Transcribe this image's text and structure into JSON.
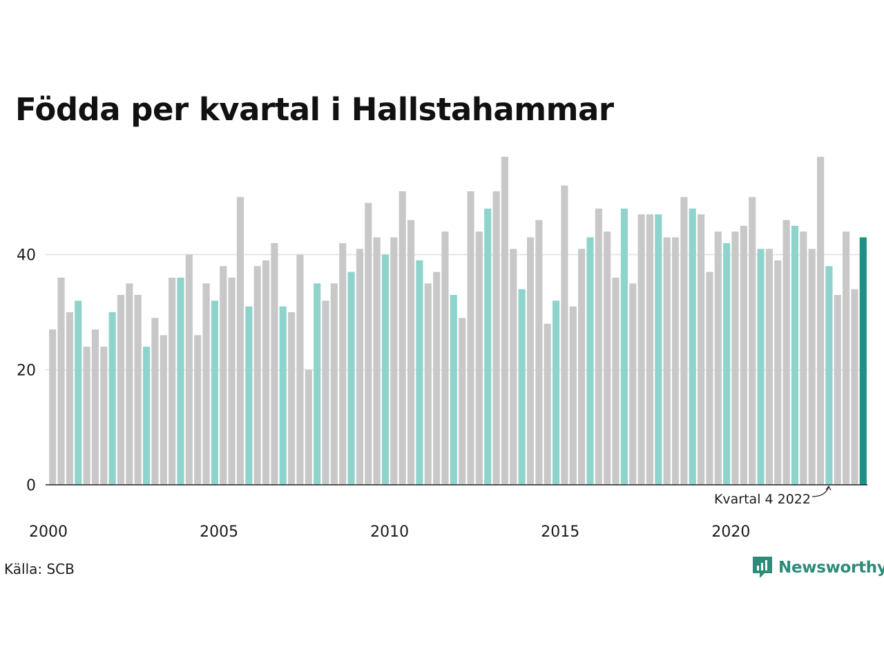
{
  "title": "Födda per kvartal i Hallstahammar",
  "source": "Källa: SCB",
  "brand": "Newsworthy",
  "colors": {
    "default_bar": "#c8c8c8",
    "quarter4_bar": "#8fd4cc",
    "latest_bar": "#1a9384",
    "gridline": "#e6e6e6",
    "baseline": "#222222",
    "brand": "#2e8b7a"
  },
  "chart_data": {
    "type": "bar",
    "start_year": 2000,
    "highlight_quarter": 4,
    "values": [
      27,
      36,
      30,
      32,
      24,
      27,
      24,
      30,
      33,
      35,
      33,
      24,
      29,
      26,
      36,
      36,
      40,
      26,
      35,
      32,
      38,
      36,
      50,
      31,
      38,
      39,
      42,
      31,
      30,
      40,
      20,
      35,
      32,
      35,
      42,
      37,
      41,
      49,
      43,
      40,
      43,
      51,
      46,
      39,
      35,
      37,
      44,
      33,
      29,
      51,
      44,
      48,
      51,
      57,
      41,
      34,
      43,
      46,
      28,
      32,
      52,
      31,
      41,
      43,
      48,
      44,
      36,
      48,
      35,
      47,
      47,
      47,
      43,
      43,
      50,
      48,
      47,
      37,
      44,
      42,
      44,
      45,
      50,
      41,
      41,
      39,
      46,
      45,
      44,
      41,
      57,
      38,
      33,
      44,
      34,
      43
    ],
    "ylim": [
      0,
      57
    ],
    "y_ticks": [
      0,
      20,
      40
    ],
    "x_tick_labels": [
      "2000",
      "2005",
      "2010",
      "2015",
      "2020"
    ],
    "annotation": "Kvartal 4 2022"
  }
}
